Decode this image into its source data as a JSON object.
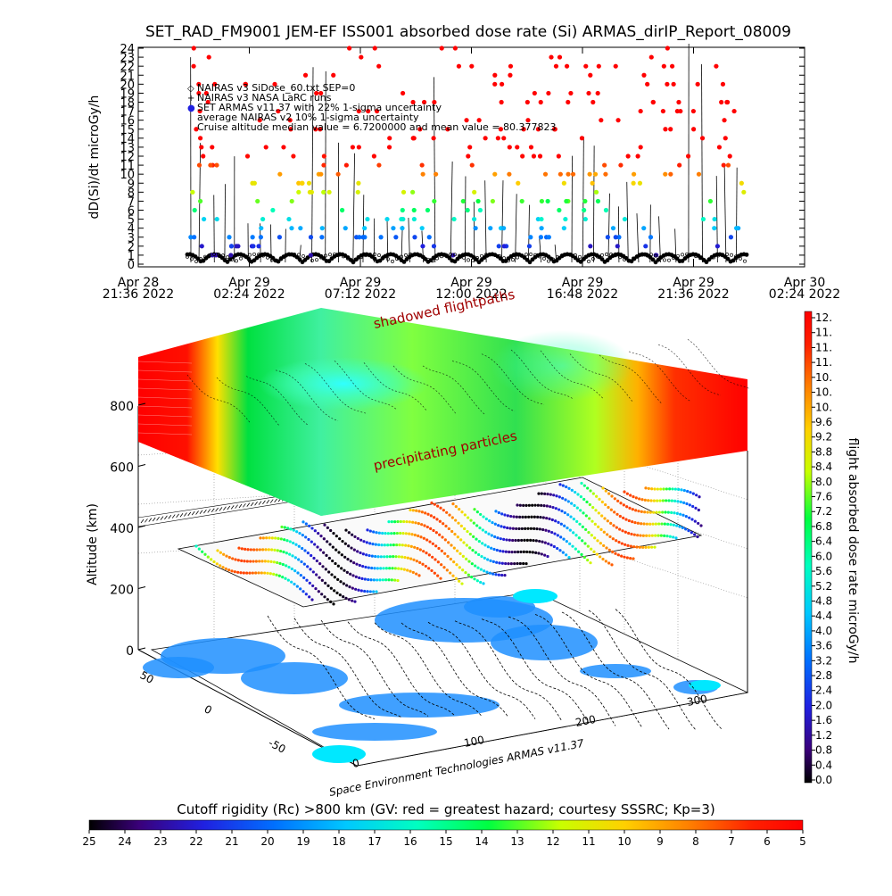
{
  "title": "SET_RAD_FM9001  JEM-EF ISS001 absorbed dose rate (Si) ARMAS_dirIP_Report_08009",
  "credit": "Space Environment Technologies ARMAS v11.37",
  "chart_data": [
    {
      "type": "line",
      "ylabel": "dD(Si)/dt microGy/h",
      "ylim": [
        0,
        24
      ],
      "yticks": [
        "0",
        "1",
        "2",
        "3",
        "4",
        "5",
        "6",
        "7",
        "8",
        "9",
        "10",
        "11",
        "12",
        "13",
        "14",
        "15",
        "16",
        "17",
        "18",
        "19",
        "20",
        "21",
        "22",
        "23",
        "24"
      ],
      "xticks": [
        {
          "line1": "Apr 28",
          "line2": "21:36 2022"
        },
        {
          "line1": "Apr 29",
          "line2": "02:24 2022"
        },
        {
          "line1": "Apr 29",
          "line2": "07:12 2022"
        },
        {
          "line1": "Apr 29",
          "line2": "12:00 2022"
        },
        {
          "line1": "Apr 29",
          "line2": "16:48 2022"
        },
        {
          "line1": "Apr 29",
          "line2": "21:36 2022"
        },
        {
          "line1": "Apr 30",
          "line2": "02:24 2022"
        }
      ],
      "legend": [
        "NAIRAS v3 SiDose_60.txt SEP=0",
        "NAIRAS v3 NASA LaRC runs",
        "SET ARMAS v11.37 with 22% 1-sigma uncertainty",
        "average NAIRAS v2 10% 1-sigma uncertainty",
        "Cruise altitude median value = 6.7200000 and mean value = 80.377823"
      ],
      "series": [
        {
          "name": "SET ARMAS v11.37 with 22% 1-sigma uncertainty",
          "marker": "dot",
          "description": "colored dots follow dose-rate colormap; baseline 0-1, SAA passes reach 2-24+",
          "baseline": [
            0,
            1
          ],
          "peaks": [
            24,
            20,
            14,
            11,
            9,
            7,
            6,
            5,
            4,
            3
          ]
        },
        {
          "name": "NAIRAS v3 SiDose_60.txt SEP=0",
          "marker": "diamond",
          "baseline": [
            0,
            1
          ]
        }
      ]
    },
    {
      "type": "heatmap",
      "subtype": "3d-surface",
      "zlabel": "Altitude (km)",
      "zticks": [
        "0",
        "200",
        "400",
        "600",
        "800"
      ],
      "xticks": [
        "0",
        "100",
        "200",
        "300"
      ],
      "yticks": [
        "-50",
        "0",
        "50"
      ],
      "annotations": [
        "shadowed flightpaths",
        "precipitating particles"
      ]
    },
    {
      "type": "heatmap",
      "subtype": "colorbar",
      "label": "flight absorbed dose rate microGy/h",
      "ticks": [
        "12.",
        "11.",
        "11.",
        "11.",
        "10.",
        "10.",
        "10.",
        "9.6",
        "9.2",
        "8.8",
        "8.4",
        "8.0",
        "7.6",
        "7.2",
        "6.8",
        "6.4",
        "6.0",
        "5.6",
        "5.2",
        "4.8",
        "4.4",
        "4.0",
        "3.6",
        "3.2",
        "2.8",
        "2.4",
        "2.0",
        "1.6",
        "1.2",
        "0.8",
        "0.4",
        "0.0"
      ]
    },
    {
      "type": "heatmap",
      "subtype": "colorbar",
      "label": "Cutoff rigidity (Rc) >800 km (GV: red = greatest hazard; courtesy SSSRC; Kp=3)",
      "ticks": [
        "25",
        "24",
        "23",
        "22",
        "21",
        "20",
        "19",
        "18",
        "17",
        "16",
        "15",
        "14",
        "13",
        "12",
        "11",
        "10",
        "9",
        "8",
        "7",
        "6",
        "5"
      ]
    }
  ]
}
